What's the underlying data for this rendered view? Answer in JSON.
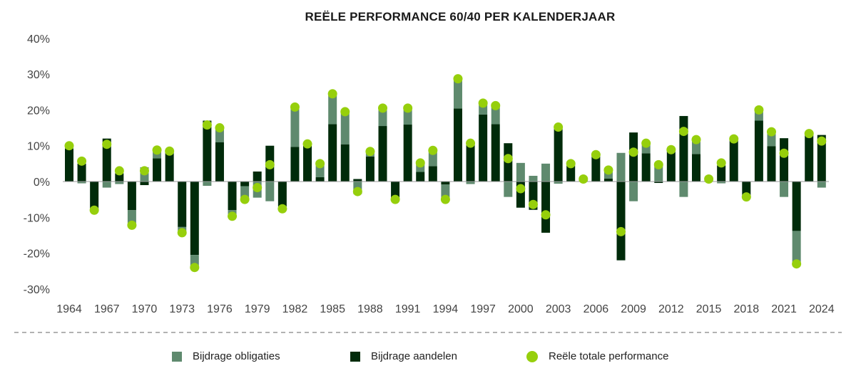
{
  "chart_data": {
    "type": "bar",
    "stacked": true,
    "title": "REËLE PERFORMANCE 60/40 PER KALENDERJAAR",
    "xlabel": "",
    "ylabel": "",
    "ylim": [
      -30,
      40
    ],
    "yticks": [
      "40%",
      "30%",
      "20%",
      "10%",
      "0%",
      "-10%",
      "-20%",
      "-30%"
    ],
    "ytick_values": [
      40,
      30,
      20,
      10,
      0,
      -10,
      -20,
      -30
    ],
    "xticks": [
      "1964",
      "1967",
      "1970",
      "1973",
      "1976",
      "1979",
      "1982",
      "1985",
      "1988",
      "1991",
      "1994",
      "1997",
      "2000",
      "2003",
      "2006",
      "2009",
      "2012",
      "2015",
      "2018",
      "2021",
      "2024"
    ],
    "x_start": 1964,
    "x_end": 2024,
    "grid": false,
    "legend_position": "bottom",
    "colors": {
      "bonds": "#5f8a6e",
      "equities": "#002b0a",
      "total": "#96cf0c"
    },
    "series": [
      {
        "name": "Bijdrage obligaties",
        "kind": "bar",
        "values": [
          0.8,
          -0.5,
          0,
          -1.7,
          -0.7,
          -4,
          4,
          2,
          0,
          -1.3,
          -3.5,
          -1.2,
          4,
          -1.5,
          -3.7,
          -4.5,
          -5.5,
          0,
          11.1,
          0.5,
          3.8,
          8.5,
          9.1,
          -3.5,
          1.4,
          5,
          0,
          4.6,
          2.5,
          4.4,
          -4.2,
          8.3,
          -0.7,
          3.2,
          5.2,
          -4.3,
          5.2,
          1.6,
          5,
          -0.6,
          0.6,
          0.4,
          0.5,
          2.4,
          8,
          -5.5,
          2.8,
          4.7,
          0.6,
          -4.3,
          4,
          0.4,
          -0.5,
          0,
          0,
          3,
          4,
          -4.3,
          -9.3,
          0.1,
          -1.7
        ]
      },
      {
        "name": "Bijdrage aandelen",
        "kind": "bar",
        "values": [
          9.2,
          5,
          -8,
          12,
          2.3,
          -8,
          -1,
          6.5,
          8.5,
          -12.7,
          -20.5,
          17,
          11,
          -8,
          -1.3,
          2.8,
          10,
          -7,
          9.7,
          10,
          1.2,
          16,
          10.4,
          0.7,
          7,
          15.5,
          -5,
          15.9,
          2.7,
          4.3,
          -0.8,
          20.4,
          10.5,
          18.7,
          16,
          10.7,
          -7.3,
          -7.9,
          -14.3,
          15.2,
          4.4,
          0.3,
          7,
          0.8,
          -22,
          13.7,
          7.9,
          -0.4,
          8.3,
          18.3,
          7.7,
          0.3,
          4.5,
          11.9,
          -4.3,
          17,
          9.9,
          12.1,
          -13.8,
          13.3,
          13
        ]
      },
      {
        "name": "Reële totale performance",
        "kind": "point",
        "values": [
          10,
          5.7,
          -8,
          10.4,
          3,
          -12.2,
          3,
          8.8,
          8.5,
          -14.3,
          -24,
          15.8,
          15,
          -9.7,
          -5,
          -1.7,
          4.7,
          -7.6,
          20.8,
          10.5,
          5,
          24.5,
          19.5,
          -2.8,
          8.4,
          20.5,
          -5,
          20.5,
          5.2,
          8.7,
          -5,
          28.7,
          10.7,
          21.9,
          21.2,
          6.4,
          -2,
          -6.4,
          -9.3,
          15.2,
          5,
          0.7,
          7.5,
          3.2,
          -14,
          8.2,
          10.7,
          4.7,
          8.9,
          14,
          11.7,
          0.7,
          5.2,
          11.9,
          -4.3,
          20,
          13.9,
          7.9,
          -23,
          13.4,
          11.3
        ]
      }
    ]
  }
}
